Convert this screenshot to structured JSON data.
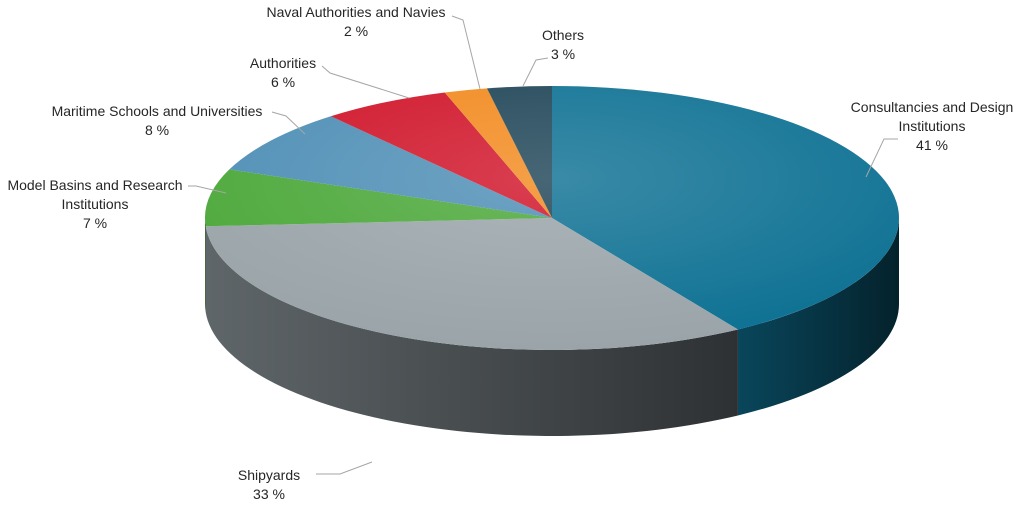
{
  "chart_data": {
    "type": "pie",
    "style": "3d",
    "title": "",
    "value_unit": "%",
    "slices": [
      {
        "label": "Consultancies and Design Institutions",
        "label_lines": [
          "Consultancies and Design",
          "Institutions"
        ],
        "value": 41,
        "value_text": "41 %",
        "color": "#0e7193"
      },
      {
        "label": "Shipyards",
        "label_lines": [
          "Shipyards"
        ],
        "value": 33,
        "value_text": "33 %",
        "color": "#9aa4a9"
      },
      {
        "label": "Model Basins and Research Institutions",
        "label_lines": [
          "Model Basins and Research",
          "Institutions"
        ],
        "value": 7,
        "value_text": "7 %",
        "color": "#4ca83a"
      },
      {
        "label": "Maritime Schools and Universities",
        "label_lines": [
          "Maritime Schools and Universities"
        ],
        "value": 8,
        "value_text": "8 %",
        "color": "#4f8fb6"
      },
      {
        "label": "Authorities",
        "label_lines": [
          "Authorities"
        ],
        "value": 6,
        "value_text": "6 %",
        "color": "#d0152a"
      },
      {
        "label": "Naval Authorities and Navies",
        "label_lines": [
          "Naval Authorities and Navies"
        ],
        "value": 2,
        "value_text": "2 %",
        "color": "#f28a1f"
      },
      {
        "label": "Others",
        "label_lines": [
          "Others"
        ],
        "value": 3,
        "value_text": "3 %",
        "color": "#1f4557"
      }
    ],
    "legend": "none",
    "data_labels": "outside with leader lines"
  }
}
